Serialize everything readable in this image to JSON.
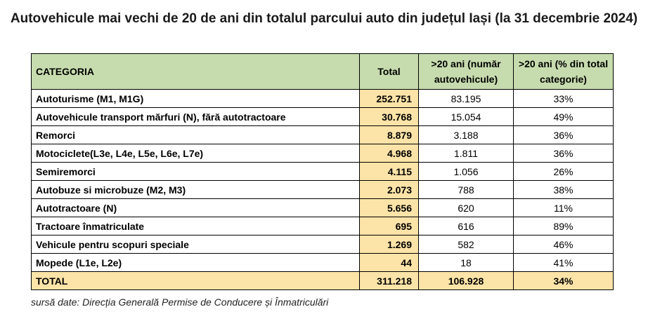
{
  "title": "Autovehicule mai vechi de 20 de ani din totalul parcului auto din județul Iași (la 31 decembrie 2024)",
  "columns": {
    "category": "CATEGORIA",
    "total": "Total",
    "count20": ">20 ani (număr autovehicule)",
    "pct20": ">20 ani (% din total categorie)"
  },
  "rows": [
    {
      "category": "Autoturisme (M1, M1G)",
      "total": "252.751",
      "count20": "83.195",
      "pct20": "33%"
    },
    {
      "category": "Autovehicule transport mărfuri (N), fără autotractoare",
      "total": "30.768",
      "count20": "15.054",
      "pct20": "49%"
    },
    {
      "category": "Remorci",
      "total": "8.879",
      "count20": "3.188",
      "pct20": "36%"
    },
    {
      "category": "Motociclete(L3e, L4e, L5e, L6e, L7e)",
      "total": "4.968",
      "count20": "1.811",
      "pct20": "36%"
    },
    {
      "category": "Semiremorci",
      "total": "4.115",
      "count20": "1.056",
      "pct20": "26%"
    },
    {
      "category": "Autobuze si microbuze (M2, M3)",
      "total": "2.073",
      "count20": "788",
      "pct20": "38%"
    },
    {
      "category": "Autotractoare (N)",
      "total": "5.656",
      "count20": "620",
      "pct20": "11%"
    },
    {
      "category": "Tractoare înmatriculate",
      "total": "695",
      "count20": "616",
      "pct20": "89%"
    },
    {
      "category": "Vehicule pentru scopuri speciale",
      "total": "1.269",
      "count20": "582",
      "pct20": "46%"
    },
    {
      "category": "Mopede (L1e, L2e)",
      "total": "44",
      "count20": "18",
      "pct20": "41%"
    }
  ],
  "totalRow": {
    "category": "TOTAL",
    "total": "311.218",
    "count20": "106.928",
    "pct20": "34%"
  },
  "source": "sursă date: Direcția Generală Permise de Conducere și Înmatriculări",
  "colors": {
    "header": "#c6dcae",
    "highlight": "#fce3a7"
  }
}
